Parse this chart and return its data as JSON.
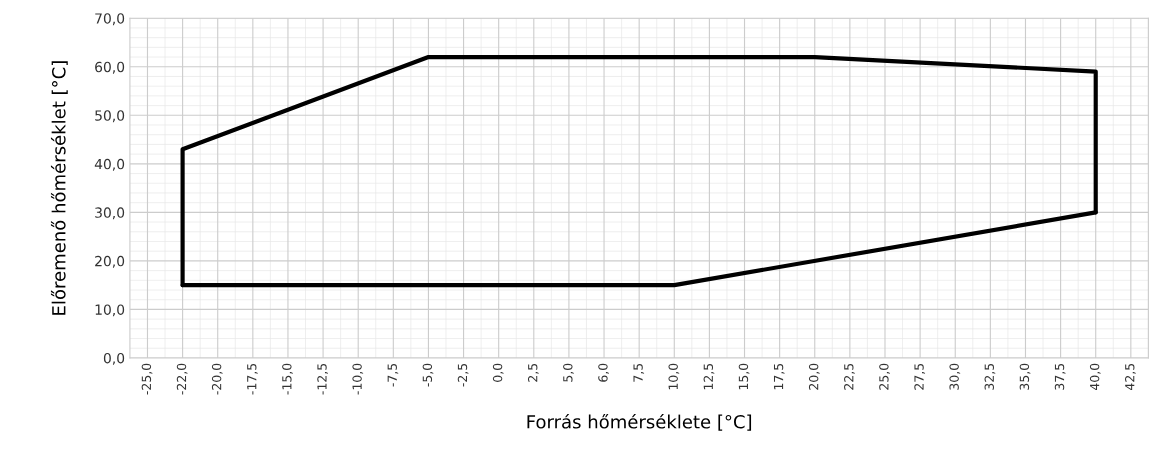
{
  "chart_data": {
    "type": "line",
    "xlabel": "Forrás hőmérséklete [°C]",
    "ylabel": "Előremenő hőmérséklet [°C]",
    "categories": [
      "-25,0",
      "-22,0",
      "-20,0",
      "-17,5",
      "-15,0",
      "-12,5",
      "-10,0",
      "-7,5",
      "-5,0",
      "-2,5",
      "0,0",
      "2,5",
      "5,0",
      "6,0",
      "7,5",
      "10,0",
      "12,5",
      "15,0",
      "17,5",
      "20,0",
      "22,5",
      "25,0",
      "27,5",
      "30,0",
      "32,5",
      "35,0",
      "37,5",
      "40,0",
      "42,5"
    ],
    "series": [
      {
        "color": "#000000",
        "x": [
          "-22,0",
          "-22,0",
          "-5,0",
          "20,0",
          "40,0",
          "40,0"
        ],
        "values": [
          15,
          43,
          62,
          62,
          59,
          30
        ]
      },
      {
        "color": "#000000",
        "x": [
          "-22,0",
          "10,0",
          "40,0"
        ],
        "values": [
          15,
          15,
          30
        ]
      }
    ],
    "ylim": [
      0,
      70
    ],
    "yticks": [
      {
        "value": 0,
        "label": "0,0"
      },
      {
        "value": 10,
        "label": "10,0"
      },
      {
        "value": 20,
        "label": "20,0"
      },
      {
        "value": 30,
        "label": "30,0"
      },
      {
        "value": 40,
        "label": "40,0"
      },
      {
        "value": 50,
        "label": "50,0"
      },
      {
        "value": 60,
        "label": "60,0"
      },
      {
        "value": 70,
        "label": "70,0"
      }
    ],
    "grid": true,
    "marker": "none",
    "line_style": "solid"
  }
}
